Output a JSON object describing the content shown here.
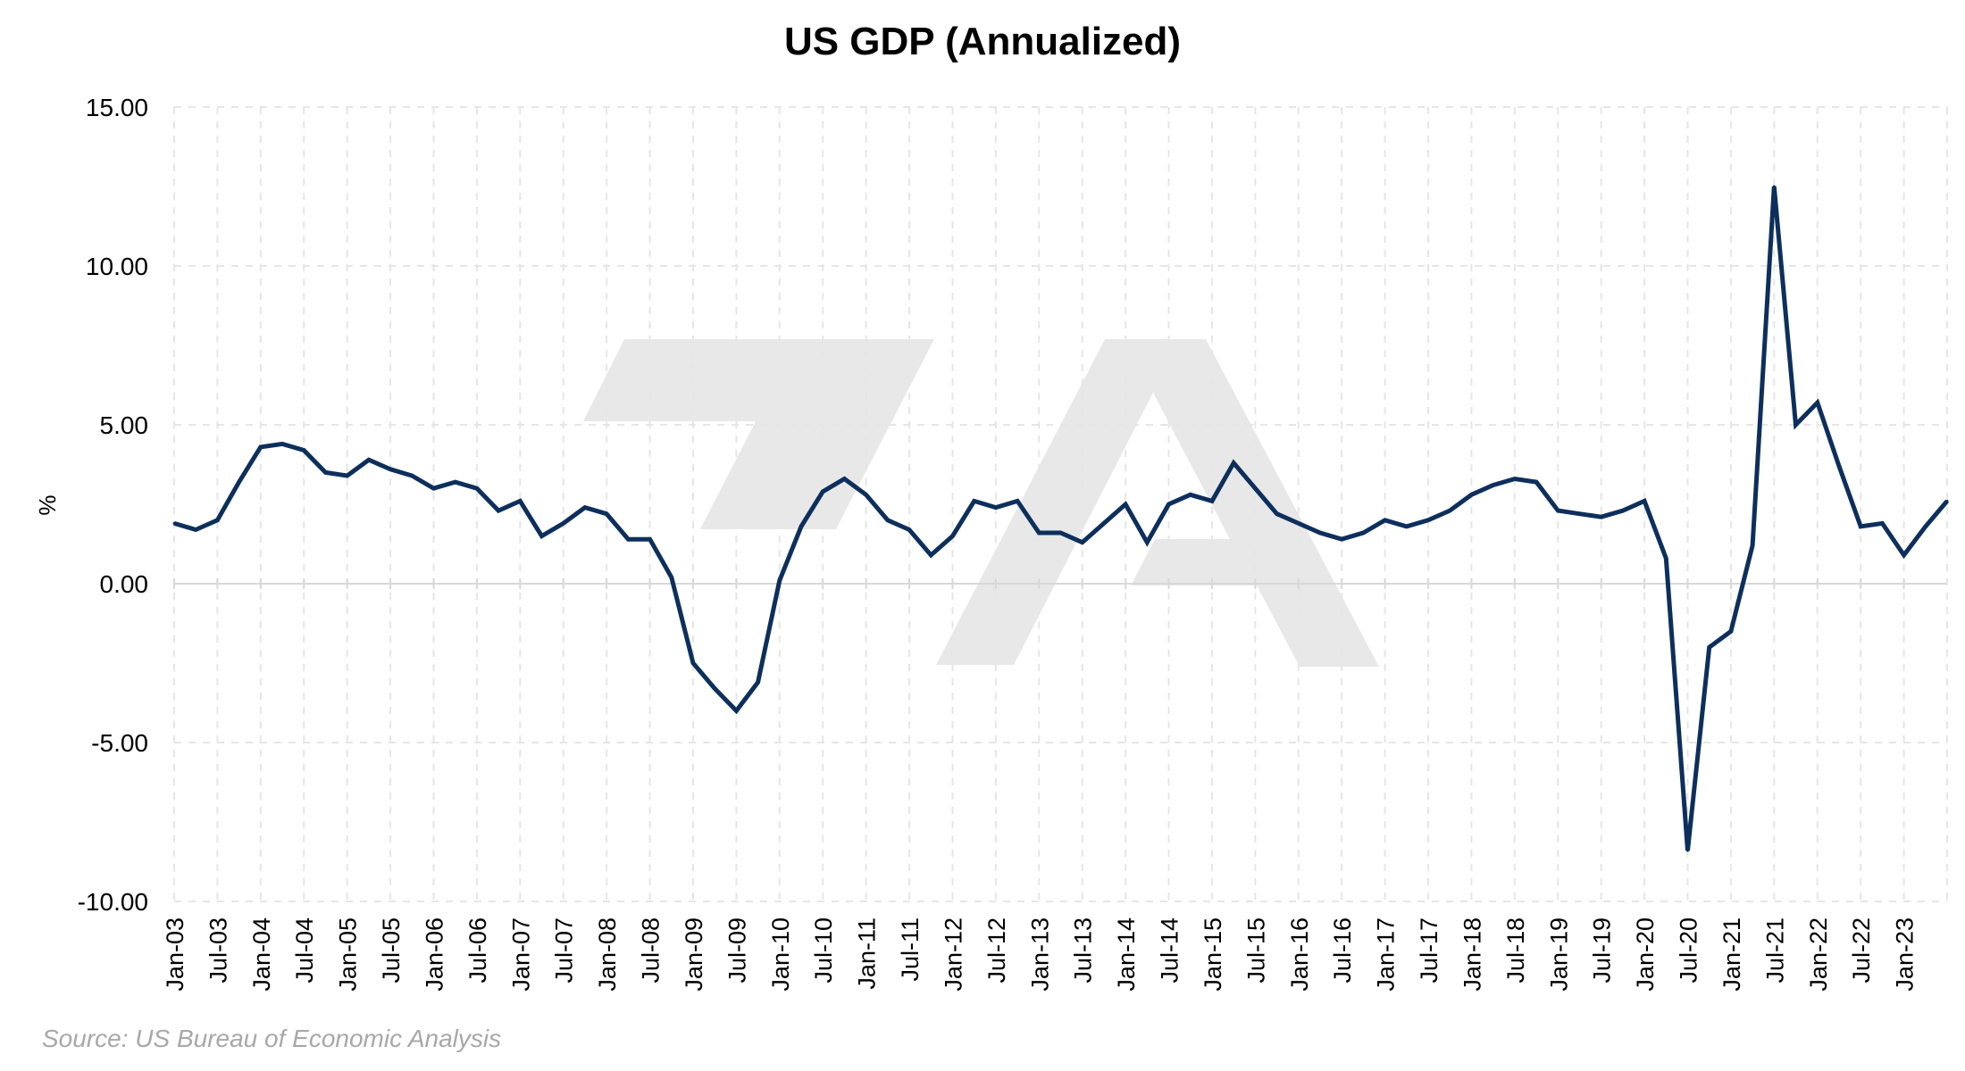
{
  "chart_data": {
    "type": "line",
    "title": "US GDP (Annualized)",
    "xlabel": "",
    "ylabel": "%",
    "source": "Source: US Bureau of Economic Analysis",
    "ylim": [
      -10,
      15
    ],
    "y_ticks": [
      15,
      10,
      5,
      0,
      -5,
      -10
    ],
    "y_tick_labels": [
      "15.00",
      "10.00",
      "5.00",
      "0.00",
      "-5.00",
      "-10.00"
    ],
    "grid": true,
    "line_color": "#0d2f5c",
    "watermark_color": "#e8e8e8",
    "x_tick_labels": [
      "Jan-03",
      "Jul-03",
      "Jan-04",
      "Jul-04",
      "Jan-05",
      "Jul-05",
      "Jan-06",
      "Jul-06",
      "Jan-07",
      "Jul-07",
      "Jan-08",
      "Jul-08",
      "Jan-09",
      "Jul-09",
      "Jan-10",
      "Jul-10",
      "Jan-11",
      "Jul-11",
      "Jan-12",
      "Jul-12",
      "Jan-13",
      "Jul-13",
      "Jan-14",
      "Jul-14",
      "Jan-15",
      "Jul-15",
      "Jan-16",
      "Jul-16",
      "Jan-17",
      "Jul-17",
      "Jan-18",
      "Jul-18",
      "Jan-19",
      "Jul-19",
      "Jan-20",
      "Jul-20",
      "Jan-21",
      "Jul-21",
      "Jan-22",
      "Jul-22",
      "Jan-23"
    ],
    "x": [
      "Jan-03",
      "Apr-03",
      "Jul-03",
      "Oct-03",
      "Jan-04",
      "Apr-04",
      "Jul-04",
      "Oct-04",
      "Jan-05",
      "Apr-05",
      "Jul-05",
      "Oct-05",
      "Jan-06",
      "Apr-06",
      "Jul-06",
      "Oct-06",
      "Jan-07",
      "Apr-07",
      "Jul-07",
      "Oct-07",
      "Jan-08",
      "Apr-08",
      "Jul-08",
      "Oct-08",
      "Jan-09",
      "Apr-09",
      "Jul-09",
      "Oct-09",
      "Jan-10",
      "Apr-10",
      "Jul-10",
      "Oct-10",
      "Jan-11",
      "Apr-11",
      "Jul-11",
      "Oct-11",
      "Jan-12",
      "Apr-12",
      "Jul-12",
      "Oct-12",
      "Jan-13",
      "Apr-13",
      "Jul-13",
      "Oct-13",
      "Jan-14",
      "Apr-14",
      "Jul-14",
      "Oct-14",
      "Jan-15",
      "Apr-15",
      "Jul-15",
      "Oct-15",
      "Jan-16",
      "Apr-16",
      "Jul-16",
      "Oct-16",
      "Jan-17",
      "Apr-17",
      "Jul-17",
      "Oct-17",
      "Jan-18",
      "Apr-18",
      "Jul-18",
      "Oct-18",
      "Jan-19",
      "Apr-19",
      "Jul-19",
      "Oct-19",
      "Jan-20",
      "Apr-20",
      "Jul-20",
      "Oct-20",
      "Jan-21",
      "Apr-21",
      "Jul-21",
      "Oct-21",
      "Jan-22",
      "Apr-22",
      "Jul-22",
      "Oct-22",
      "Jan-23",
      "Apr-23",
      "Jul-23"
    ],
    "values": [
      1.9,
      1.7,
      2.0,
      3.2,
      4.3,
      4.4,
      4.2,
      3.5,
      3.4,
      3.9,
      3.6,
      3.4,
      3.0,
      3.2,
      3.0,
      2.3,
      2.6,
      1.5,
      1.9,
      2.4,
      2.2,
      1.4,
      1.4,
      0.2,
      -2.5,
      -3.3,
      -4.0,
      -3.1,
      0.1,
      1.8,
      2.9,
      3.3,
      2.8,
      2.0,
      1.7,
      0.9,
      1.5,
      2.6,
      2.4,
      2.6,
      1.6,
      1.6,
      1.3,
      1.9,
      2.5,
      1.3,
      2.5,
      2.8,
      2.6,
      3.8,
      3.0,
      2.2,
      1.9,
      1.6,
      1.4,
      1.6,
      2.0,
      1.8,
      2.0,
      2.3,
      2.8,
      3.1,
      3.3,
      3.2,
      2.3,
      2.2,
      2.1,
      2.3,
      2.6,
      0.8,
      -8.4,
      -2.0,
      -1.5,
      1.2,
      12.5,
      5.0,
      5.7,
      3.7,
      1.8,
      1.9,
      0.9,
      1.8,
      2.6
    ]
  }
}
